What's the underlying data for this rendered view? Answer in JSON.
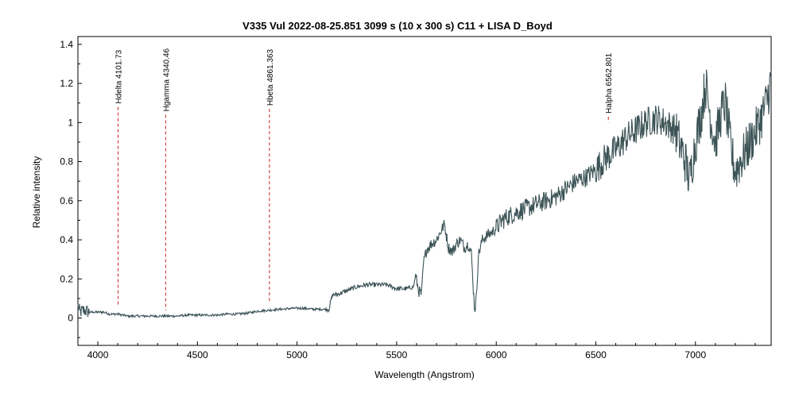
{
  "chart_data": {
    "type": "line",
    "title": "V335 Vul  2022-08-25.851  3099 s (10 x 300 s)  C11 + LISA  D_Boyd",
    "xlabel": "Wavelength (Angstrom)",
    "ylabel": "Relative intensity",
    "xlim": [
      3900,
      7380
    ],
    "ylim": [
      -0.14,
      1.44
    ],
    "x_ticks": [
      4000,
      4500,
      5000,
      5500,
      6000,
      6500,
      7000
    ],
    "x_tick_labels": [
      "4000",
      "4500",
      "5000",
      "5500",
      "6000",
      "6500",
      "7000"
    ],
    "y_ticks": [
      0,
      0.2,
      0.4,
      0.6,
      0.8,
      1.0,
      1.2,
      1.4
    ],
    "y_tick_labels": [
      "0",
      "0.2",
      "0.4",
      "0.6",
      "0.8",
      "1",
      "1.2",
      "1.4"
    ],
    "grid": false,
    "series": [
      {
        "name": "V335 Vul spectrum",
        "color": "#3d5457",
        "anchors": [
          [
            3900,
            0.06
          ],
          [
            3910,
            0.03
          ],
          [
            3930,
            0.04
          ],
          [
            3960,
            0.03
          ],
          [
            3990,
            0.03
          ],
          [
            4030,
            0.03
          ],
          [
            4060,
            0.02
          ],
          [
            4100,
            0.02
          ],
          [
            4150,
            0.01
          ],
          [
            4200,
            0.01
          ],
          [
            4250,
            0.01
          ],
          [
            4300,
            0.01
          ],
          [
            4340,
            0.01
          ],
          [
            4400,
            0.01
          ],
          [
            4450,
            0.015
          ],
          [
            4500,
            0.015
          ],
          [
            4550,
            0.015
          ],
          [
            4600,
            0.015
          ],
          [
            4650,
            0.02
          ],
          [
            4700,
            0.02
          ],
          [
            4750,
            0.025
          ],
          [
            4780,
            0.03
          ],
          [
            4800,
            0.035
          ],
          [
            4860,
            0.04
          ],
          [
            4920,
            0.045
          ],
          [
            4980,
            0.05
          ],
          [
            5030,
            0.05
          ],
          [
            5080,
            0.045
          ],
          [
            5120,
            0.045
          ],
          [
            5160,
            0.045
          ],
          [
            5170,
            0.09
          ],
          [
            5180,
            0.12
          ],
          [
            5200,
            0.12
          ],
          [
            5250,
            0.14
          ],
          [
            5300,
            0.16
          ],
          [
            5350,
            0.17
          ],
          [
            5400,
            0.17
          ],
          [
            5450,
            0.17
          ],
          [
            5500,
            0.15
          ],
          [
            5550,
            0.15
          ],
          [
            5585,
            0.16
          ],
          [
            5595,
            0.22
          ],
          [
            5610,
            0.14
          ],
          [
            5625,
            0.12
          ],
          [
            5635,
            0.28
          ],
          [
            5650,
            0.35
          ],
          [
            5675,
            0.38
          ],
          [
            5700,
            0.4
          ],
          [
            5720,
            0.44
          ],
          [
            5740,
            0.48
          ],
          [
            5760,
            0.36
          ],
          [
            5780,
            0.34
          ],
          [
            5800,
            0.38
          ],
          [
            5820,
            0.4
          ],
          [
            5840,
            0.36
          ],
          [
            5860,
            0.38
          ],
          [
            5875,
            0.33
          ],
          [
            5885,
            0.15
          ],
          [
            5892,
            0.04
          ],
          [
            5900,
            0.1
          ],
          [
            5910,
            0.32
          ],
          [
            5930,
            0.4
          ],
          [
            5950,
            0.42
          ],
          [
            5980,
            0.44
          ],
          [
            6000,
            0.46
          ],
          [
            6030,
            0.5
          ],
          [
            6060,
            0.52
          ],
          [
            6100,
            0.54
          ],
          [
            6150,
            0.56
          ],
          [
            6200,
            0.58
          ],
          [
            6250,
            0.6
          ],
          [
            6300,
            0.62
          ],
          [
            6350,
            0.66
          ],
          [
            6400,
            0.7
          ],
          [
            6450,
            0.72
          ],
          [
            6500,
            0.76
          ],
          [
            6550,
            0.82
          ],
          [
            6600,
            0.86
          ],
          [
            6650,
            0.92
          ],
          [
            6700,
            0.96
          ],
          [
            6750,
            1.0
          ],
          [
            6800,
            1.02
          ],
          [
            6850,
            1.0
          ],
          [
            6900,
            0.96
          ],
          [
            6950,
            0.8
          ],
          [
            6970,
            0.7
          ],
          [
            7000,
            0.9
          ],
          [
            7030,
            1.05
          ],
          [
            7050,
            1.2
          ],
          [
            7080,
            1.0
          ],
          [
            7100,
            0.9
          ],
          [
            7130,
            1.05
          ],
          [
            7150,
            1.1
          ],
          [
            7180,
            0.85
          ],
          [
            7200,
            0.75
          ],
          [
            7250,
            0.85
          ],
          [
            7300,
            0.95
          ],
          [
            7340,
            1.05
          ],
          [
            7360,
            1.12
          ],
          [
            7380,
            1.22
          ]
        ]
      }
    ],
    "lines": [
      {
        "name": "Hdelta",
        "x": 4101.73,
        "label": "Hdelta 4101.73",
        "y_top": 1.08,
        "y_bottom": 0.06,
        "color": "#cc2222"
      },
      {
        "name": "Hgamma",
        "x": 4340.46,
        "label": "Hgamma 4340.46",
        "y_top": 1.04,
        "y_bottom": 0.04,
        "color": "#cc2222"
      },
      {
        "name": "Hbeta",
        "x": 4861.363,
        "label": "Hbeta 4861.363",
        "y_top": 1.07,
        "y_bottom": 0.08,
        "color": "#cc2222"
      },
      {
        "name": "Halpha",
        "x": 6562.801,
        "label": "Halpha 6562.801",
        "y_top": 1.03,
        "y_bottom": 1.0,
        "color": "#cc2222"
      }
    ]
  }
}
